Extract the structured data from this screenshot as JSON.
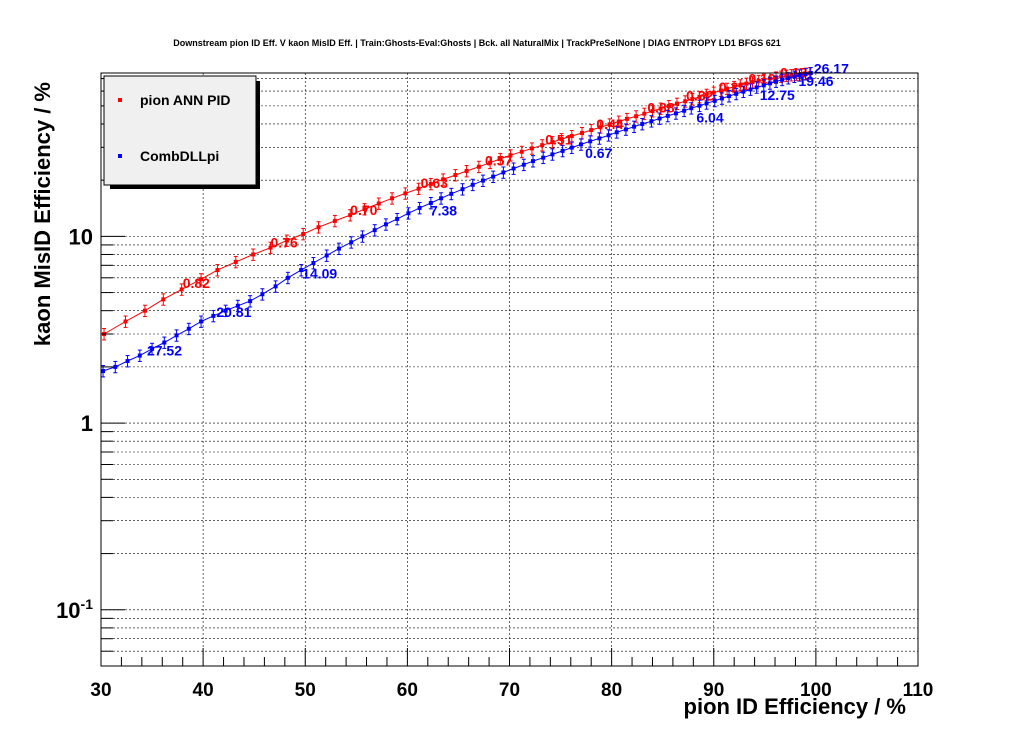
{
  "chart_data": {
    "type": "line",
    "title": "Downstream pion ID Eff. V kaon MisID Eff. | Train:Ghosts-Eval:Ghosts | Bck. all NaturalMix | TrackPreSelNone | DIAG ENTROPY LD1 BFGS 621",
    "xlabel": "pion ID Efficiency / %",
    "ylabel": "kaon MisID Efficiency / %",
    "xlim": [
      30,
      110
    ],
    "ylim": [
      0.05,
      75
    ],
    "yscale": "log",
    "grid": true,
    "legend_position": "top-left",
    "x_tick_labels": [
      "30",
      "40",
      "50",
      "60",
      "70",
      "80",
      "90",
      "100",
      "110"
    ],
    "y_tick_labels": [
      {
        "value": 10,
        "mantissa": "10",
        "exponent": ""
      },
      {
        "value": 1,
        "mantissa": "1",
        "exponent": ""
      },
      {
        "value": 0.1,
        "mantissa": "10",
        "exponent": "-1"
      }
    ],
    "series": [
      {
        "name": "pion ANN PID",
        "color": "#ff0000",
        "x": [
          30.3,
          32.4,
          34.3,
          36.1,
          37.9,
          39.8,
          41.4,
          43.2,
          44.9,
          46.6,
          48.2,
          49.8,
          51.3,
          52.9,
          54.4,
          55.8,
          57.2,
          58.5,
          59.8,
          61.1,
          62.3,
          63.5,
          64.7,
          65.8,
          67.0,
          68.1,
          69.1,
          70.1,
          71.2,
          72.2,
          73.2,
          74.2,
          75.1,
          76.1,
          77.1,
          78.0,
          78.9,
          79.8,
          80.7,
          81.5,
          82.4,
          83.2,
          84.0,
          84.8,
          85.6,
          86.4,
          87.2,
          87.9,
          88.6,
          89.3,
          90.0,
          90.7,
          91.3,
          92.0,
          92.6,
          93.2,
          93.8,
          94.4,
          94.9,
          95.5,
          96.1,
          96.6,
          97.1,
          97.6,
          98.1,
          98.6,
          99.0,
          99.4
        ],
        "y": [
          3.0,
          3.5,
          4.0,
          4.6,
          5.2,
          5.9,
          6.6,
          7.3,
          8.0,
          8.7,
          9.5,
          10.3,
          11.2,
          12.1,
          13.0,
          14.0,
          15.0,
          16.0,
          17.0,
          18.0,
          19.1,
          20.2,
          21.3,
          22.4,
          23.6,
          24.8,
          26.0,
          27.2,
          28.4,
          29.6,
          30.8,
          32.0,
          33.2,
          34.5,
          35.8,
          37.1,
          38.4,
          39.8,
          41.2,
          42.6,
          44.0,
          45.4,
          46.9,
          48.4,
          49.9,
          51.4,
          52.9,
          54.4,
          55.9,
          57.4,
          58.9,
          60.4,
          61.8,
          63.2,
          64.5,
          65.8,
          67.0,
          68.1,
          69.1,
          70.1,
          71.0,
          71.8,
          72.5,
          73.1,
          73.6,
          74.0,
          74.4,
          74.7
        ],
        "annotations": [
          {
            "x": 38.0,
            "y": 5.3,
            "label": "0.82"
          },
          {
            "x": 46.6,
            "y": 8.7,
            "label": "0.76"
          },
          {
            "x": 54.4,
            "y": 13.0,
            "label": "0.70"
          },
          {
            "x": 61.3,
            "y": 18.2,
            "label": "0.63"
          },
          {
            "x": 67.6,
            "y": 24.0,
            "label": "0.57"
          },
          {
            "x": 73.5,
            "y": 31.0,
            "label": "0.51"
          },
          {
            "x": 78.5,
            "y": 37.5,
            "label": "0.44"
          },
          {
            "x": 83.5,
            "y": 46.0,
            "label": "0.38"
          },
          {
            "x": 87.3,
            "y": 53.5,
            "label": "0.32"
          },
          {
            "x": 90.5,
            "y": 59.5,
            "label": "0.25"
          },
          {
            "x": 93.4,
            "y": 66.0,
            "label": "0.19"
          },
          {
            "x": 96.5,
            "y": 71.0,
            "label": "0.13"
          }
        ]
      },
      {
        "name": "CombDLLpi",
        "color": "#0000ff",
        "x": [
          30.2,
          31.4,
          32.6,
          33.8,
          35.0,
          36.2,
          37.4,
          38.6,
          39.8,
          41.0,
          42.2,
          43.4,
          44.6,
          45.8,
          47.1,
          48.3,
          49.6,
          50.8,
          52.1,
          53.3,
          54.5,
          55.6,
          56.8,
          57.9,
          59.0,
          60.1,
          61.2,
          62.3,
          63.3,
          64.3,
          65.4,
          66.4,
          67.4,
          68.4,
          69.4,
          70.4,
          71.4,
          72.3,
          73.3,
          74.2,
          75.2,
          76.1,
          77.0,
          77.9,
          78.8,
          79.7,
          80.5,
          81.4,
          82.2,
          83.0,
          83.9,
          84.7,
          85.5,
          86.3,
          87.1,
          87.8,
          88.6,
          89.3,
          90.1,
          90.8,
          91.5,
          92.2,
          92.9,
          93.6,
          94.2,
          94.9,
          95.5,
          96.1,
          96.7,
          97.3,
          97.9,
          98.4,
          99.0,
          99.5
        ],
        "y": [
          1.9,
          2.0,
          2.15,
          2.3,
          2.5,
          2.7,
          2.95,
          3.2,
          3.5,
          3.75,
          4.0,
          4.25,
          4.5,
          4.9,
          5.4,
          6.0,
          6.6,
          7.2,
          7.9,
          8.6,
          9.3,
          10.0,
          10.8,
          11.6,
          12.4,
          13.3,
          14.2,
          15.1,
          16.0,
          16.9,
          17.9,
          18.9,
          19.9,
          20.9,
          22.0,
          23.1,
          24.2,
          25.3,
          26.4,
          27.5,
          28.7,
          29.9,
          31.1,
          32.3,
          33.5,
          34.8,
          36.1,
          37.4,
          38.7,
          40.0,
          41.4,
          42.8,
          44.2,
          45.6,
          47.1,
          48.6,
          50.1,
          51.6,
          53.2,
          54.8,
          56.4,
          58.0,
          59.6,
          61.2,
          62.8,
          64.4,
          66.0,
          67.5,
          69.0,
          70.4,
          71.7,
          72.9,
          74.0,
          75.0
        ],
        "annotations": [
          {
            "x": 34.5,
            "y": 2.3,
            "label": "27.52"
          },
          {
            "x": 41.3,
            "y": 3.7,
            "label": "20.81"
          },
          {
            "x": 49.7,
            "y": 5.95,
            "label": "14.09"
          },
          {
            "x": 62.2,
            "y": 12.9,
            "label": "7.38"
          },
          {
            "x": 77.4,
            "y": 26.3,
            "label": "0.67"
          },
          {
            "x": 88.3,
            "y": 40.7,
            "label": "6.04"
          },
          {
            "x": 94.5,
            "y": 53.8,
            "label": "12.75"
          },
          {
            "x": 98.3,
            "y": 63.7,
            "label": "19.46"
          },
          {
            "x": 99.8,
            "y": 74.4,
            "label": "26.17"
          }
        ]
      }
    ]
  }
}
